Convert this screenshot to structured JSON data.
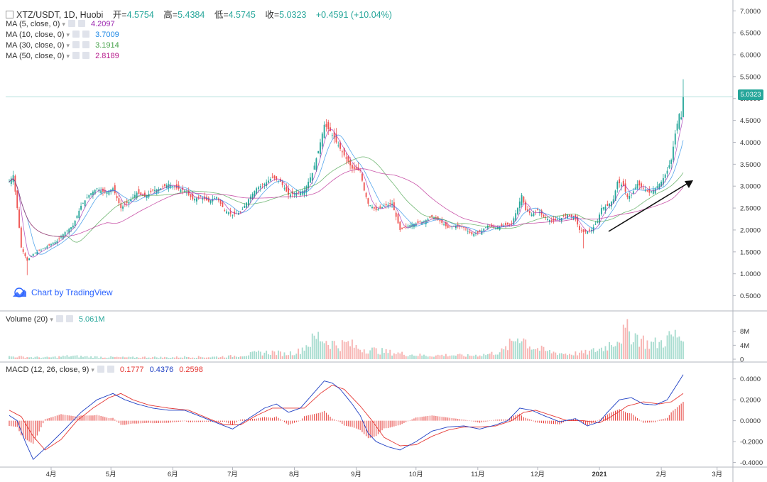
{
  "header": {
    "collapse_icon": "minus-square-icon",
    "symbol": "XTZ/USDT, 1D, Huobi",
    "open_label": "开=",
    "open": "4.5754",
    "high_label": "高=",
    "high": "5.4384",
    "low_label": "低=",
    "low": "4.5745",
    "close_label": "收=",
    "close": "5.0323",
    "change": "+0.4591 (+10.04%)"
  },
  "ma_legend": [
    {
      "label": "MA (5, close, 0)",
      "value": "4.2097",
      "color": "#9c27b0"
    },
    {
      "label": "MA (10, close, 0)",
      "value": "3.7009",
      "color": "#1e88e5"
    },
    {
      "label": "MA (30, close, 0)",
      "value": "3.1914",
      "color": "#43a047"
    },
    {
      "label": "MA (50, close, 0)",
      "value": "2.8189",
      "color": "#b71c8c"
    }
  ],
  "volume_legend": {
    "label": "Volume (20)",
    "value": "5.061M",
    "color": "#26a69a"
  },
  "macd_legend": {
    "label": "MACD (12, 26, close, 9)",
    "hist": "0.1777",
    "macd": "0.4376",
    "signal": "0.2598",
    "hist_color": "#e53935",
    "macd_color": "#1e3fc4",
    "signal_color": "#e53935"
  },
  "watermark": {
    "text": "Chart by TradingView",
    "icon": "tradingview-cloud-icon"
  },
  "last_price_label": "5.0323",
  "colors": {
    "up": "#26a69a",
    "down": "#ef5350",
    "up_vol": "#a7dccf",
    "down_vol": "#f7b3b1"
  },
  "chart_data": {
    "type": "line",
    "description_of_series": "daily candlestick close approximations",
    "price_axis": {
      "ticks": [
        "7.0000",
        "6.5000",
        "6.0000",
        "5.5000",
        "5.0000",
        "4.5000",
        "4.0000",
        "3.5000",
        "3.0000",
        "2.5000",
        "2.0000",
        "1.5000",
        "1.0000",
        "0.5000"
      ],
      "range": [
        0.25,
        7.15
      ]
    },
    "volume_axis": {
      "ticks": [
        "8M",
        "4M",
        "0"
      ],
      "range": [
        0,
        11
      ]
    },
    "macd_axis": {
      "ticks": [
        "0.4000",
        "0.2000",
        "0.0000",
        "-0.2000",
        "-0.4000"
      ],
      "range": [
        -0.43,
        0.52
      ]
    },
    "time_axis": {
      "ticks": [
        "4月",
        "5月",
        "6月",
        "7月",
        "8月",
        "9月",
        "10月",
        "11月",
        "12月",
        "2021",
        "2月",
        "3月"
      ],
      "day_index": [
        21,
        51,
        82,
        112,
        143,
        174,
        204,
        235,
        265,
        296,
        327,
        355
      ]
    },
    "close_keyframes": [
      [
        0,
        3.1
      ],
      [
        2,
        3.25
      ],
      [
        4,
        2.5
      ],
      [
        6,
        1.6
      ],
      [
        9,
        1.3
      ],
      [
        12,
        1.45
      ],
      [
        16,
        1.55
      ],
      [
        20,
        1.65
      ],
      [
        24,
        1.75
      ],
      [
        28,
        1.95
      ],
      [
        32,
        2.1
      ],
      [
        36,
        2.55
      ],
      [
        40,
        2.8
      ],
      [
        44,
        2.95
      ],
      [
        48,
        2.85
      ],
      [
        52,
        2.95
      ],
      [
        56,
        2.5
      ],
      [
        60,
        2.65
      ],
      [
        64,
        2.85
      ],
      [
        68,
        2.75
      ],
      [
        72,
        2.9
      ],
      [
        76,
        2.95
      ],
      [
        80,
        3.05
      ],
      [
        84,
        2.95
      ],
      [
        88,
        2.9
      ],
      [
        92,
        2.7
      ],
      [
        96,
        2.75
      ],
      [
        100,
        2.65
      ],
      [
        104,
        2.75
      ],
      [
        108,
        2.45
      ],
      [
        112,
        2.35
      ],
      [
        116,
        2.4
      ],
      [
        120,
        2.7
      ],
      [
        124,
        2.95
      ],
      [
        128,
        3.05
      ],
      [
        132,
        3.2
      ],
      [
        136,
        3.1
      ],
      [
        140,
        2.8
      ],
      [
        144,
        2.85
      ],
      [
        148,
        2.9
      ],
      [
        152,
        3.3
      ],
      [
        155,
        3.8
      ],
      [
        158,
        4.4
      ],
      [
        161,
        4.25
      ],
      [
        164,
        4.0
      ],
      [
        168,
        3.7
      ],
      [
        172,
        3.4
      ],
      [
        176,
        3.35
      ],
      [
        178,
        2.9
      ],
      [
        180,
        2.6
      ],
      [
        184,
        2.45
      ],
      [
        188,
        2.55
      ],
      [
        192,
        2.6
      ],
      [
        194,
        2.3
      ],
      [
        196,
        2.0
      ],
      [
        200,
        2.1
      ],
      [
        204,
        2.15
      ],
      [
        208,
        2.2
      ],
      [
        212,
        2.3
      ],
      [
        216,
        2.2
      ],
      [
        220,
        2.05
      ],
      [
        224,
        2.1
      ],
      [
        228,
        2.05
      ],
      [
        232,
        1.9
      ],
      [
        236,
        1.95
      ],
      [
        240,
        2.1
      ],
      [
        244,
        2.05
      ],
      [
        248,
        2.1
      ],
      [
        252,
        2.15
      ],
      [
        255,
        2.5
      ],
      [
        257,
        2.8
      ],
      [
        259,
        2.45
      ],
      [
        262,
        2.35
      ],
      [
        265,
        2.45
      ],
      [
        268,
        2.3
      ],
      [
        272,
        2.2
      ],
      [
        276,
        2.25
      ],
      [
        280,
        2.35
      ],
      [
        284,
        2.25
      ],
      [
        286,
        2.0
      ],
      [
        288,
        1.95
      ],
      [
        292,
        2.0
      ],
      [
        295,
        2.2
      ],
      [
        297,
        2.5
      ],
      [
        300,
        2.55
      ],
      [
        303,
        2.7
      ],
      [
        305,
        3.1
      ],
      [
        308,
        3.0
      ],
      [
        310,
        2.75
      ],
      [
        312,
        2.8
      ],
      [
        315,
        3.05
      ],
      [
        318,
        2.95
      ],
      [
        321,
        2.85
      ],
      [
        324,
        2.95
      ],
      [
        327,
        3.1
      ],
      [
        330,
        3.35
      ],
      [
        332,
        3.6
      ],
      [
        334,
        4.2
      ],
      [
        336,
        4.65
      ],
      [
        337,
        4.57
      ],
      [
        338,
        5.03
      ]
    ],
    "volume_keyframes": [
      [
        0,
        0.8
      ],
      [
        10,
        0.6
      ],
      [
        20,
        0.5
      ],
      [
        30,
        0.9
      ],
      [
        40,
        0.7
      ],
      [
        50,
        0.6
      ],
      [
        60,
        0.5
      ],
      [
        70,
        0.6
      ],
      [
        80,
        0.5
      ],
      [
        90,
        0.7
      ],
      [
        100,
        0.6
      ],
      [
        110,
        0.8
      ],
      [
        118,
        1.2
      ],
      [
        125,
        1.8
      ],
      [
        132,
        2.0
      ],
      [
        138,
        1.5
      ],
      [
        145,
        2.2
      ],
      [
        150,
        4.5
      ],
      [
        155,
        6.5
      ],
      [
        160,
        5.0
      ],
      [
        165,
        4.0
      ],
      [
        170,
        4.5
      ],
      [
        175,
        3.2
      ],
      [
        180,
        2.8
      ],
      [
        190,
        2.0
      ],
      [
        200,
        1.4
      ],
      [
        210,
        1.0
      ],
      [
        220,
        1.2
      ],
      [
        230,
        1.0
      ],
      [
        240,
        1.4
      ],
      [
        248,
        2.4
      ],
      [
        256,
        7.0
      ],
      [
        262,
        3.5
      ],
      [
        270,
        2.2
      ],
      [
        280,
        1.5
      ],
      [
        290,
        1.9
      ],
      [
        298,
        3.2
      ],
      [
        304,
        5.5
      ],
      [
        310,
        8.0
      ],
      [
        315,
        6.5
      ],
      [
        320,
        4.5
      ],
      [
        326,
        4.5
      ],
      [
        332,
        6.5
      ],
      [
        336,
        6.8
      ],
      [
        338,
        5.06
      ]
    ],
    "macd_keyframes": [
      [
        0,
        0.05
      ],
      [
        4,
        0.0
      ],
      [
        8,
        -0.2
      ],
      [
        12,
        -0.37
      ],
      [
        20,
        -0.23
      ],
      [
        28,
        -0.08
      ],
      [
        36,
        0.08
      ],
      [
        44,
        0.2
      ],
      [
        52,
        0.26
      ],
      [
        58,
        0.2
      ],
      [
        64,
        0.16
      ],
      [
        72,
        0.12
      ],
      [
        80,
        0.1
      ],
      [
        88,
        0.1
      ],
      [
        96,
        0.04
      ],
      [
        104,
        -0.02
      ],
      [
        112,
        -0.08
      ],
      [
        120,
        0.02
      ],
      [
        128,
        0.12
      ],
      [
        134,
        0.16
      ],
      [
        140,
        0.08
      ],
      [
        146,
        0.12
      ],
      [
        152,
        0.25
      ],
      [
        158,
        0.38
      ],
      [
        162,
        0.36
      ],
      [
        166,
        0.3
      ],
      [
        172,
        0.16
      ],
      [
        176,
        0.05
      ],
      [
        180,
        -0.12
      ],
      [
        184,
        -0.2
      ],
      [
        190,
        -0.25
      ],
      [
        196,
        -0.28
      ],
      [
        204,
        -0.2
      ],
      [
        212,
        -0.1
      ],
      [
        220,
        -0.06
      ],
      [
        228,
        -0.05
      ],
      [
        236,
        -0.08
      ],
      [
        244,
        -0.04
      ],
      [
        250,
        0.0
      ],
      [
        256,
        0.12
      ],
      [
        262,
        0.1
      ],
      [
        268,
        0.05
      ],
      [
        276,
        -0.01
      ],
      [
        284,
        0.02
      ],
      [
        290,
        -0.05
      ],
      [
        296,
        -0.01
      ],
      [
        300,
        0.08
      ],
      [
        306,
        0.2
      ],
      [
        312,
        0.22
      ],
      [
        318,
        0.16
      ],
      [
        324,
        0.15
      ],
      [
        330,
        0.2
      ],
      [
        334,
        0.32
      ],
      [
        338,
        0.44
      ]
    ],
    "signal_keyframes": [
      [
        0,
        0.1
      ],
      [
        6,
        0.04
      ],
      [
        12,
        -0.15
      ],
      [
        18,
        -0.28
      ],
      [
        26,
        -0.18
      ],
      [
        34,
        0.0
      ],
      [
        42,
        0.12
      ],
      [
        50,
        0.22
      ],
      [
        56,
        0.26
      ],
      [
        62,
        0.2
      ],
      [
        70,
        0.15
      ],
      [
        80,
        0.12
      ],
      [
        90,
        0.1
      ],
      [
        100,
        0.02
      ],
      [
        108,
        -0.04
      ],
      [
        116,
        -0.04
      ],
      [
        124,
        0.05
      ],
      [
        132,
        0.12
      ],
      [
        140,
        0.12
      ],
      [
        148,
        0.12
      ],
      [
        156,
        0.26
      ],
      [
        162,
        0.34
      ],
      [
        168,
        0.3
      ],
      [
        176,
        0.14
      ],
      [
        182,
        0.0
      ],
      [
        188,
        -0.16
      ],
      [
        196,
        -0.24
      ],
      [
        204,
        -0.23
      ],
      [
        212,
        -0.15
      ],
      [
        220,
        -0.09
      ],
      [
        228,
        -0.06
      ],
      [
        236,
        -0.06
      ],
      [
        244,
        -0.05
      ],
      [
        252,
        0.0
      ],
      [
        258,
        0.08
      ],
      [
        264,
        0.1
      ],
      [
        272,
        0.05
      ],
      [
        280,
        0.0
      ],
      [
        288,
        0.0
      ],
      [
        296,
        -0.02
      ],
      [
        302,
        0.04
      ],
      [
        310,
        0.14
      ],
      [
        318,
        0.18
      ],
      [
        326,
        0.16
      ],
      [
        332,
        0.18
      ],
      [
        338,
        0.26
      ]
    ]
  }
}
